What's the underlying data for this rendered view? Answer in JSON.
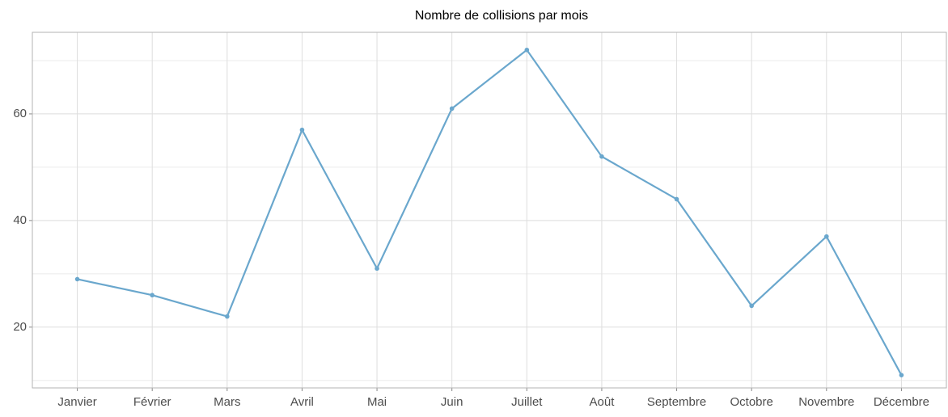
{
  "chart_data": {
    "type": "line",
    "title": "Nombre de collisions par mois",
    "categories": [
      "Janvier",
      "Février",
      "Mars",
      "Avril",
      "Mai",
      "Juin",
      "Juillet",
      "Août",
      "Septembre",
      "Octobre",
      "Novembre",
      "Décembre"
    ],
    "values": [
      29,
      26,
      22,
      57,
      31,
      61,
      72,
      52,
      44,
      24,
      37,
      11
    ],
    "color": "#6aa7cd",
    "ylim": [
      8.6,
      75.3
    ],
    "yticks": [
      20,
      40,
      60
    ],
    "minor_yticks": [
      10,
      30,
      50,
      70
    ],
    "grid": true
  }
}
